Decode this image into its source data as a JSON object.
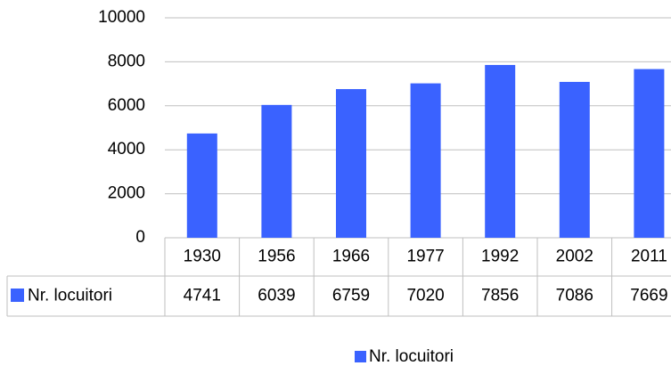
{
  "chart_data": {
    "type": "bar",
    "categories": [
      "1930",
      "1956",
      "1966",
      "1977",
      "1992",
      "2002",
      "2011"
    ],
    "series": [
      {
        "name": "Nr. locuitori",
        "color": "#3a62ff",
        "values": [
          4741,
          6039,
          6759,
          7020,
          7856,
          7086,
          7669
        ]
      }
    ],
    "ylim": [
      0,
      10000
    ],
    "yticks": [
      0,
      2000,
      4000,
      6000,
      8000,
      10000
    ],
    "grid": true,
    "data_table": true,
    "legend": "bottom"
  }
}
